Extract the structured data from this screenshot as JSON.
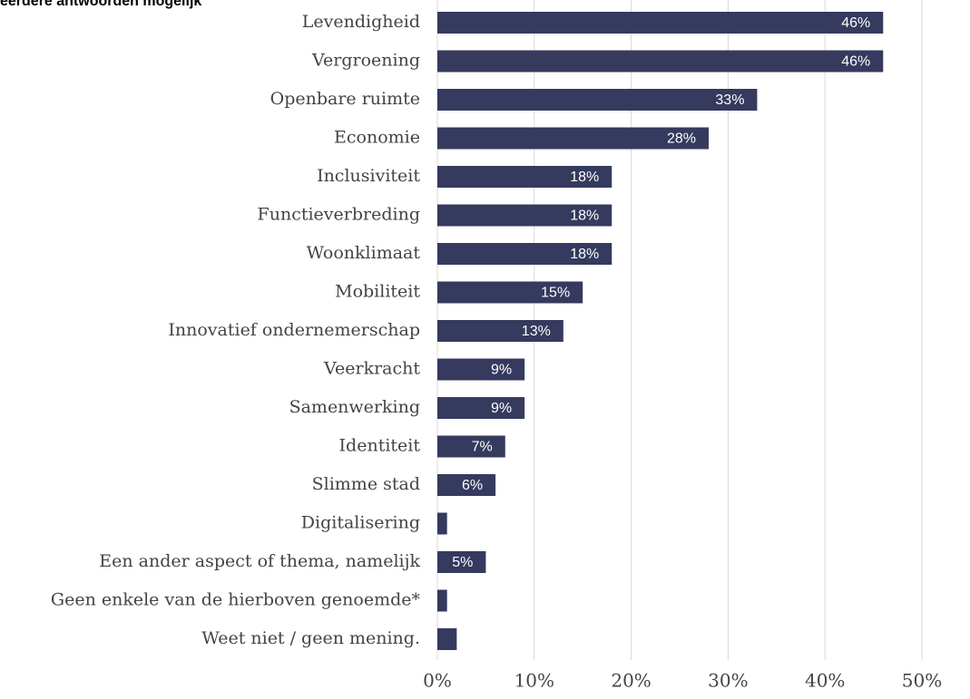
{
  "chart_data": {
    "type": "bar",
    "orientation": "horizontal",
    "title": "eerdere antwoorden mogelijk",
    "categories": [
      "Levendigheid",
      "Vergroening",
      "Openbare ruimte",
      "Economie",
      "Inclusiviteit",
      "Functieverbreding",
      "Woonklimaat",
      "Mobiliteit",
      "Innovatief ondernemerschap",
      "Veerkracht",
      "Samenwerking",
      "Identiteit",
      "Slimme stad",
      "Digitalisering",
      "Een ander aspect of thema, namelijk",
      "Geen enkele van de hierboven genoemde*",
      "Weet niet / geen mening."
    ],
    "values": [
      46,
      46,
      33,
      28,
      18,
      18,
      18,
      15,
      13,
      9,
      9,
      7,
      6,
      1,
      5,
      1,
      2
    ],
    "value_labels": [
      "46%",
      "46%",
      "33%",
      "28%",
      "18%",
      "18%",
      "18%",
      "15%",
      "13%",
      "9%",
      "9%",
      "7%",
      "6%",
      null,
      "5%",
      null,
      null
    ],
    "color": "#353a5e",
    "xlim": [
      0,
      50
    ],
    "xticks": [
      {
        "value": 0,
        "label": "0%"
      },
      {
        "value": 10,
        "label": "10%"
      },
      {
        "value": 20,
        "label": "20%"
      },
      {
        "value": 30,
        "label": "30%"
      },
      {
        "value": 40,
        "label": "40%"
      },
      {
        "value": 50,
        "label": "50%"
      }
    ],
    "grid": true
  }
}
